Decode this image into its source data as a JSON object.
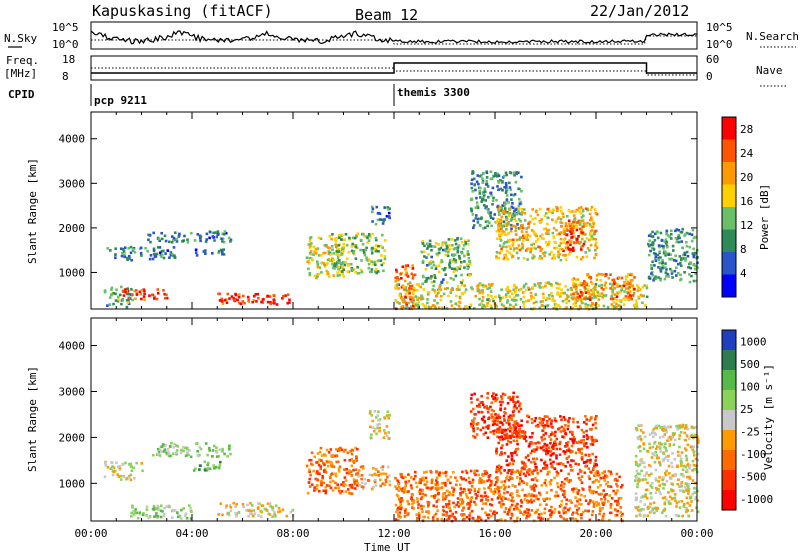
{
  "header": {
    "station": "Kapuskasing (fitACF)",
    "beam": "Beam 12",
    "date": "22/Jan/2012"
  },
  "top_panels": {
    "nsky_label": "N.Sky",
    "nsky_ticks": [
      "10^5",
      "10^0"
    ],
    "nsearch_label": "N.Search",
    "nsearch_ticks": [
      "10^5",
      "10^0"
    ],
    "freq_label": "Freq.",
    "freq_unit": "[MHz]",
    "freq_ticks": [
      "18",
      "8"
    ],
    "nave_label": "Nave",
    "nave_ticks": [
      "60",
      "0"
    ],
    "cpid_label": "CPID",
    "cpid_modes": [
      {
        "name": "pcp 9211",
        "start_hour": 0
      },
      {
        "name": "themis 3300",
        "start_hour": 12
      }
    ]
  },
  "chart_data": [
    {
      "type": "heatmap",
      "parameter": "Power",
      "ylabel": "Slant Range [km]",
      "xlabel": "Time UT",
      "x_ticks": [
        "00:00",
        "04:00",
        "08:00",
        "12:00",
        "16:00",
        "20:00",
        "00:00"
      ],
      "xlim_hours": [
        0,
        24
      ],
      "y_ticks": [
        1000,
        2000,
        3000,
        4000
      ],
      "ylim": [
        180,
        4600
      ],
      "colorbar": {
        "label": "Power [dB]",
        "ticks": [
          4,
          8,
          12,
          16,
          20,
          24,
          28
        ],
        "range": [
          0,
          30
        ],
        "colors": [
          "#0000ff",
          "#2a54c9",
          "#2e8b57",
          "#6abf69",
          "#ffd000",
          "#ff9900",
          "#ff5500",
          "#ff0000"
        ]
      },
      "echo_regions": [
        {
          "t0": 0.5,
          "t1": 1.6,
          "r0": 250,
          "r1": 750,
          "val": 11
        },
        {
          "t0": 0.6,
          "t1": 3.3,
          "r0": 1300,
          "r1": 1600,
          "val": 8
        },
        {
          "t0": 1.2,
          "t1": 3.0,
          "r0": 400,
          "r1": 650,
          "val": 26
        },
        {
          "t0": 2.2,
          "t1": 5.5,
          "r0": 1700,
          "r1": 1950,
          "val": 8
        },
        {
          "t0": 4.0,
          "t1": 5.3,
          "r0": 1400,
          "r1": 1550,
          "val": 7
        },
        {
          "t0": 5.0,
          "t1": 8.0,
          "r0": 300,
          "r1": 550,
          "val": 27
        },
        {
          "t0": 8.5,
          "t1": 10.0,
          "r0": 900,
          "r1": 1850,
          "val": 16
        },
        {
          "t0": 9.5,
          "t1": 11.6,
          "r0": 1000,
          "r1": 1900,
          "val": 13
        },
        {
          "t0": 11.0,
          "t1": 11.8,
          "r0": 2100,
          "r1": 2500,
          "val": 8
        },
        {
          "t0": 12.0,
          "t1": 12.8,
          "r0": 200,
          "r1": 1200,
          "val": 24
        },
        {
          "t0": 12.0,
          "t1": 22.0,
          "r0": 200,
          "r1": 800,
          "val": 16
        },
        {
          "t0": 13.0,
          "t1": 15.0,
          "r0": 800,
          "r1": 1800,
          "val": 12
        },
        {
          "t0": 15.0,
          "t1": 17.0,
          "r0": 2000,
          "r1": 3300,
          "val": 10
        },
        {
          "t0": 16.0,
          "t1": 20.0,
          "r0": 1300,
          "r1": 2500,
          "val": 18
        },
        {
          "t0": 18.5,
          "t1": 19.5,
          "r0": 1500,
          "r1": 2200,
          "val": 25
        },
        {
          "t0": 19.0,
          "t1": 21.5,
          "r0": 400,
          "r1": 1000,
          "val": 22
        },
        {
          "t0": 22.0,
          "t1": 24.0,
          "r0": 800,
          "r1": 2000,
          "val": 10
        }
      ]
    },
    {
      "type": "heatmap",
      "parameter": "Velocity",
      "ylabel": "Slant Range [km]",
      "xlabel": "Time UT",
      "x_ticks": [
        "00:00",
        "04:00",
        "08:00",
        "12:00",
        "16:00",
        "20:00",
        "00:00"
      ],
      "xlim_hours": [
        0,
        24
      ],
      "y_ticks": [
        1000,
        2000,
        3000,
        4000
      ],
      "ylim": [
        180,
        4600
      ],
      "colorbar": {
        "label": "Velocity [m s⁻¹]",
        "ticks": [
          "1000",
          "500",
          "100",
          "25",
          "-25",
          "-100",
          "-500",
          "-1000"
        ],
        "colors": [
          "#1f3fbf",
          "#2e7d4f",
          "#57b947",
          "#8ad35a",
          "#c8c8c8",
          "#ff9a00",
          "#ff6a00",
          "#ff3000",
          "#ff0000"
        ]
      },
      "echo_regions": [
        {
          "t0": 0.5,
          "t1": 2.0,
          "r0": 1100,
          "r1": 1500,
          "val": 4
        },
        {
          "t0": 1.5,
          "t1": 4.0,
          "r0": 250,
          "r1": 550,
          "val": 3
        },
        {
          "t0": 2.4,
          "t1": 5.5,
          "r0": 1600,
          "r1": 1900,
          "val": 3
        },
        {
          "t0": 4.0,
          "t1": 5.3,
          "r0": 1300,
          "r1": 1500,
          "val": 2
        },
        {
          "t0": 5.0,
          "t1": 8.0,
          "r0": 300,
          "r1": 600,
          "val": 4
        },
        {
          "t0": 8.5,
          "t1": 10.5,
          "r0": 800,
          "r1": 1800,
          "val": 6
        },
        {
          "t0": 10.5,
          "t1": 11.8,
          "r0": 900,
          "r1": 1400,
          "val": 5
        },
        {
          "t0": 11.0,
          "t1": 11.8,
          "r0": 2000,
          "r1": 2600,
          "val": 4
        },
        {
          "t0": 12.0,
          "t1": 21.0,
          "r0": 200,
          "r1": 1300,
          "val": 6
        },
        {
          "t0": 15.0,
          "t1": 17.0,
          "r0": 2000,
          "r1": 3000,
          "val": 7
        },
        {
          "t0": 16.0,
          "t1": 20.0,
          "r0": 1300,
          "r1": 2500,
          "val": 7
        },
        {
          "t0": 21.5,
          "t1": 24.0,
          "r0": 300,
          "r1": 2300,
          "val": 4
        }
      ]
    }
  ]
}
